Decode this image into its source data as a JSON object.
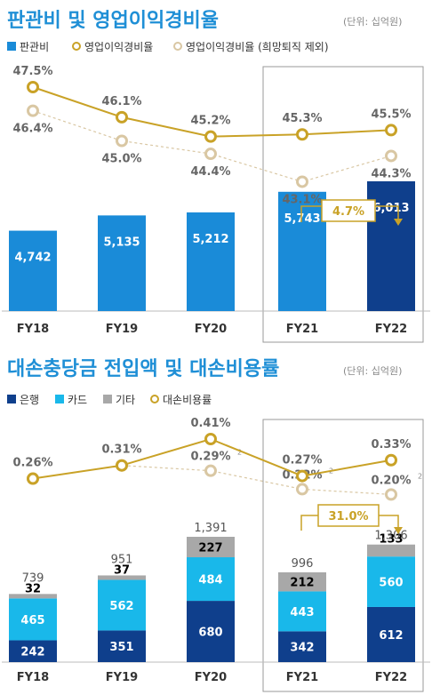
{
  "colors": {
    "title": "#1f8fd6",
    "bar_light": "#1a8bd8",
    "bar_dark": "#0f3f8c",
    "line_gold": "#c9a227",
    "line_beige": "#d9c7a3",
    "bank": "#0f3f8c",
    "card": "#19b8ea",
    "other": "#a8a8a8",
    "highlight_box": "#9a9a9a"
  },
  "chart_data": [
    {
      "type": "bar",
      "title": "판관비 및 영업이익경비율",
      "unit": "(단위: 십억원)",
      "legend": [
        "판관비",
        "영업이익경비율",
        "영업이익경비율 (희망퇴직 제외)"
      ],
      "categories": [
        "FY18",
        "FY19",
        "FY20",
        "FY21",
        "FY22"
      ],
      "series": [
        {
          "name": "판관비",
          "values": [
            4742,
            5135,
            5212,
            5743,
            6013
          ],
          "labels": [
            "4,742",
            "5,135",
            "5,212",
            "5,743",
            "6,013"
          ]
        },
        {
          "name": "영업이익경비율",
          "values": [
            47.5,
            46.1,
            45.2,
            45.3,
            45.5
          ],
          "labels": [
            "47.5%",
            "46.1%",
            "45.2%",
            "45.3%",
            "45.5%"
          ]
        },
        {
          "name": "영업이익경비율 (희망퇴직 제외)",
          "values": [
            46.4,
            45.0,
            44.4,
            43.1,
            44.3
          ],
          "labels": [
            "46.4%",
            "45.0%",
            "44.4%",
            "43.1%",
            "44.3%"
          ]
        }
      ],
      "annotation": "4.7%",
      "highlight": [
        "FY21",
        "FY22"
      ]
    },
    {
      "type": "bar",
      "title": "대손충당금 전입액 및 대손비용률",
      "unit": "(단위: 십억원)",
      "legend": [
        "은행",
        "카드",
        "기타",
        "대손비용률"
      ],
      "categories": [
        "FY18",
        "FY19",
        "FY20",
        "FY21",
        "FY22"
      ],
      "series": [
        {
          "name": "은행",
          "values": [
            242,
            351,
            680,
            342,
            612
          ]
        },
        {
          "name": "카드",
          "values": [
            465,
            562,
            484,
            443,
            560
          ]
        },
        {
          "name": "기타",
          "values": [
            32,
            37,
            227,
            212,
            133
          ]
        },
        {
          "name": "대손비용률",
          "values": [
            0.26,
            0.31,
            0.41,
            0.27,
            0.33
          ],
          "labels": [
            "0.26%",
            "0.31%",
            "0.41%",
            "0.27%",
            "0.33%"
          ]
        },
        {
          "values": [
            0.26,
            0.31,
            0.29,
            0.22,
            0.2
          ],
          "labels": [
            "",
            "",
            "0.29%",
            "0.22%",
            "0.20%"
          ]
        }
      ],
      "totals": [
        "739",
        "951",
        "1,391",
        "996",
        "1,306"
      ],
      "footnote_mark": "2",
      "annotation": "31.0%",
      "highlight": [
        "FY21",
        "FY22"
      ]
    }
  ]
}
